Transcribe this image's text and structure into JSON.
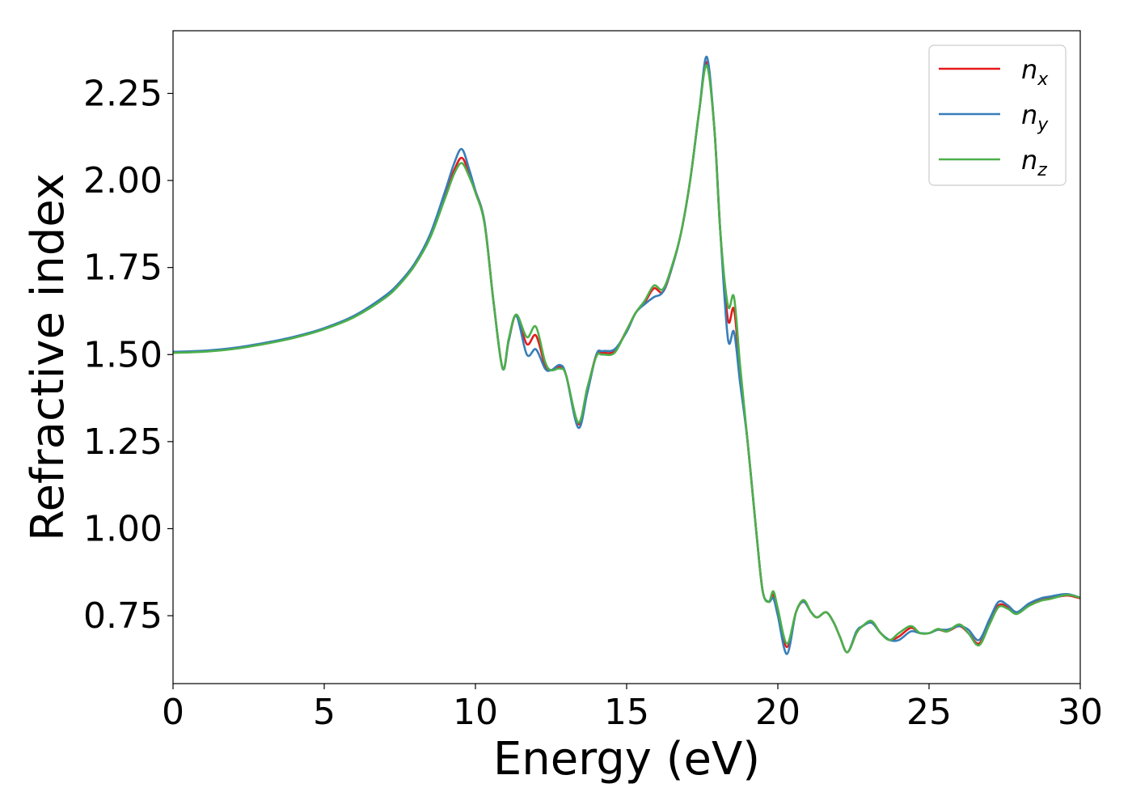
{
  "chart_data": {
    "type": "line",
    "xlabel": "Energy (eV)",
    "ylabel": "Refractive index",
    "xlim": [
      0,
      30
    ],
    "ylim": [
      0.555,
      2.43
    ],
    "xticks": [
      0,
      5,
      10,
      15,
      20,
      25,
      30
    ],
    "xtick_labels": [
      "0",
      "5",
      "10",
      "15",
      "20",
      "25",
      "30"
    ],
    "yticks": [
      0.75,
      1.0,
      1.25,
      1.5,
      1.75,
      2.0,
      2.25
    ],
    "ytick_labels": [
      "0.75",
      "1.00",
      "1.25",
      "1.50",
      "1.75",
      "2.00",
      "2.25"
    ],
    "grid": false,
    "legend_position": "top-right",
    "x": [
      0,
      1,
      2,
      3,
      4,
      5,
      6,
      7,
      7.5,
      8,
      8.5,
      9,
      9.3,
      9.55,
      9.8,
      10.0,
      10.3,
      10.6,
      10.9,
      11.1,
      11.35,
      11.7,
      12.0,
      12.3,
      12.5,
      12.8,
      13.0,
      13.4,
      13.7,
      14.0,
      14.2,
      14.6,
      15.0,
      15.3,
      15.6,
      15.9,
      16.2,
      16.5,
      16.8,
      17.1,
      17.4,
      17.65,
      17.9,
      18.1,
      18.35,
      18.55,
      18.75,
      19.0,
      19.3,
      19.5,
      19.7,
      19.85,
      20.0,
      20.3,
      20.6,
      20.85,
      21.1,
      21.3,
      21.6,
      21.85,
      22.05,
      22.3,
      22.6,
      22.8,
      23.1,
      23.4,
      23.7,
      24.0,
      24.4,
      24.7,
      25.0,
      25.3,
      25.6,
      26.0,
      26.3,
      26.65,
      27.0,
      27.3,
      27.6,
      27.9,
      28.3,
      28.7,
      29.0,
      29.3,
      29.6,
      30.0
    ],
    "series": [
      {
        "name": "n_x",
        "color": "#e41a1c",
        "values": [
          1.507,
          1.51,
          1.518,
          1.532,
          1.55,
          1.575,
          1.61,
          1.665,
          1.705,
          1.76,
          1.84,
          1.96,
          2.03,
          2.065,
          2.02,
          1.97,
          1.88,
          1.65,
          1.46,
          1.54,
          1.612,
          1.53,
          1.555,
          1.47,
          1.455,
          1.465,
          1.44,
          1.3,
          1.4,
          1.5,
          1.505,
          1.51,
          1.57,
          1.62,
          1.65,
          1.69,
          1.68,
          1.75,
          1.85,
          2.0,
          2.2,
          2.34,
          2.15,
          1.85,
          1.6,
          1.63,
          1.45,
          1.25,
          0.98,
          0.82,
          0.79,
          0.81,
          0.76,
          0.66,
          0.76,
          0.79,
          0.76,
          0.745,
          0.76,
          0.73,
          0.69,
          0.645,
          0.7,
          0.72,
          0.73,
          0.7,
          0.68,
          0.69,
          0.715,
          0.7,
          0.7,
          0.71,
          0.705,
          0.72,
          0.7,
          0.67,
          0.73,
          0.78,
          0.775,
          0.76,
          0.78,
          0.795,
          0.8,
          0.805,
          0.808,
          0.8
        ]
      },
      {
        "name": "n_y",
        "color": "#377eb8",
        "values": [
          1.508,
          1.511,
          1.519,
          1.533,
          1.551,
          1.576,
          1.612,
          1.668,
          1.708,
          1.763,
          1.845,
          1.97,
          2.05,
          2.09,
          2.03,
          1.97,
          1.88,
          1.65,
          1.46,
          1.54,
          1.612,
          1.5,
          1.515,
          1.46,
          1.455,
          1.47,
          1.44,
          1.29,
          1.39,
          1.5,
          1.51,
          1.515,
          1.565,
          1.62,
          1.645,
          1.665,
          1.68,
          1.75,
          1.85,
          2.0,
          2.2,
          2.355,
          2.15,
          1.85,
          1.545,
          1.565,
          1.42,
          1.25,
          0.98,
          0.82,
          0.79,
          0.8,
          0.75,
          0.64,
          0.76,
          0.79,
          0.76,
          0.745,
          0.76,
          0.73,
          0.69,
          0.645,
          0.705,
          0.72,
          0.73,
          0.7,
          0.68,
          0.68,
          0.705,
          0.7,
          0.7,
          0.71,
          0.71,
          0.72,
          0.71,
          0.68,
          0.74,
          0.79,
          0.78,
          0.76,
          0.785,
          0.8,
          0.805,
          0.81,
          0.812,
          0.802
        ]
      },
      {
        "name": "n_z",
        "color": "#4daf4a",
        "values": [
          1.505,
          1.508,
          1.516,
          1.53,
          1.548,
          1.573,
          1.608,
          1.662,
          1.702,
          1.757,
          1.835,
          1.95,
          2.02,
          2.05,
          2.01,
          1.965,
          1.875,
          1.65,
          1.46,
          1.545,
          1.615,
          1.55,
          1.58,
          1.48,
          1.455,
          1.46,
          1.44,
          1.305,
          1.405,
          1.495,
          1.5,
          1.505,
          1.57,
          1.62,
          1.655,
          1.698,
          1.688,
          1.755,
          1.85,
          2.0,
          2.2,
          2.33,
          2.15,
          1.85,
          1.64,
          1.665,
          1.47,
          1.25,
          0.98,
          0.82,
          0.79,
          0.82,
          0.77,
          0.67,
          0.76,
          0.795,
          0.76,
          0.745,
          0.76,
          0.73,
          0.69,
          0.645,
          0.7,
          0.72,
          0.735,
          0.7,
          0.68,
          0.7,
          0.72,
          0.7,
          0.7,
          0.712,
          0.705,
          0.725,
          0.7,
          0.665,
          0.725,
          0.775,
          0.77,
          0.755,
          0.778,
          0.793,
          0.798,
          0.805,
          0.81,
          0.802
        ]
      }
    ]
  }
}
